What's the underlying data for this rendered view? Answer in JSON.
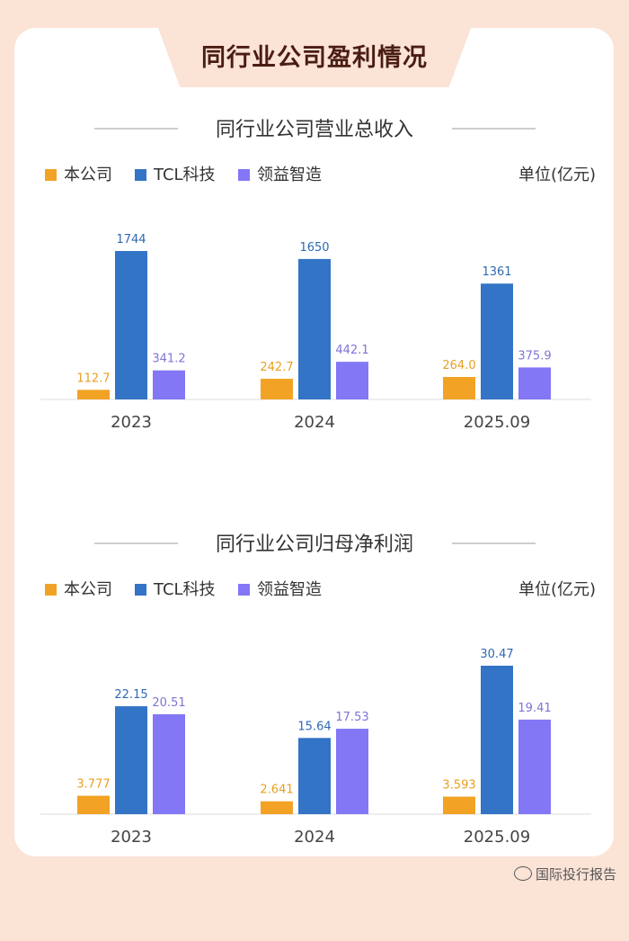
{
  "page_title": "同行业公司盈利情况",
  "watermark": "国际投行报告",
  "colors": {
    "本公司": "#f2a325",
    "TCL科技": "#3374c6",
    "领益智造": "#8377f6"
  },
  "chart_data": [
    {
      "type": "bar",
      "title": "同行业公司营业总收入",
      "unit": "单位(亿元)",
      "categories": [
        "2023",
        "2024",
        "2025.09"
      ],
      "series": [
        {
          "name": "本公司",
          "values": [
            112.7,
            242.7,
            264.0
          ],
          "labels": [
            "112.7",
            "242.7",
            "264.0"
          ]
        },
        {
          "name": "TCL科技",
          "values": [
            1744,
            1650,
            1361
          ],
          "labels": [
            "1744",
            "1650",
            "1361"
          ]
        },
        {
          "name": "领益智造",
          "values": [
            341.2,
            442.1,
            375.9
          ],
          "labels": [
            "341.2",
            "442.1",
            "375.9"
          ]
        }
      ],
      "ylim": [
        0,
        1744
      ]
    },
    {
      "type": "bar",
      "title": "同行业公司归母净利润",
      "unit": "单位(亿元)",
      "categories": [
        "2023",
        "2024",
        "2025.09"
      ],
      "series": [
        {
          "name": "本公司",
          "values": [
            3.777,
            2.641,
            3.593
          ],
          "labels": [
            "3.777",
            "2.641",
            "3.593"
          ]
        },
        {
          "name": "TCL科技",
          "values": [
            22.15,
            15.64,
            30.47
          ],
          "labels": [
            "22.15",
            "15.64",
            "30.47"
          ]
        },
        {
          "name": "领益智造",
          "values": [
            20.51,
            17.53,
            19.41
          ],
          "labels": [
            "20.51",
            "17.53",
            "19.41"
          ]
        }
      ],
      "ylim": [
        0,
        30.47
      ]
    }
  ]
}
